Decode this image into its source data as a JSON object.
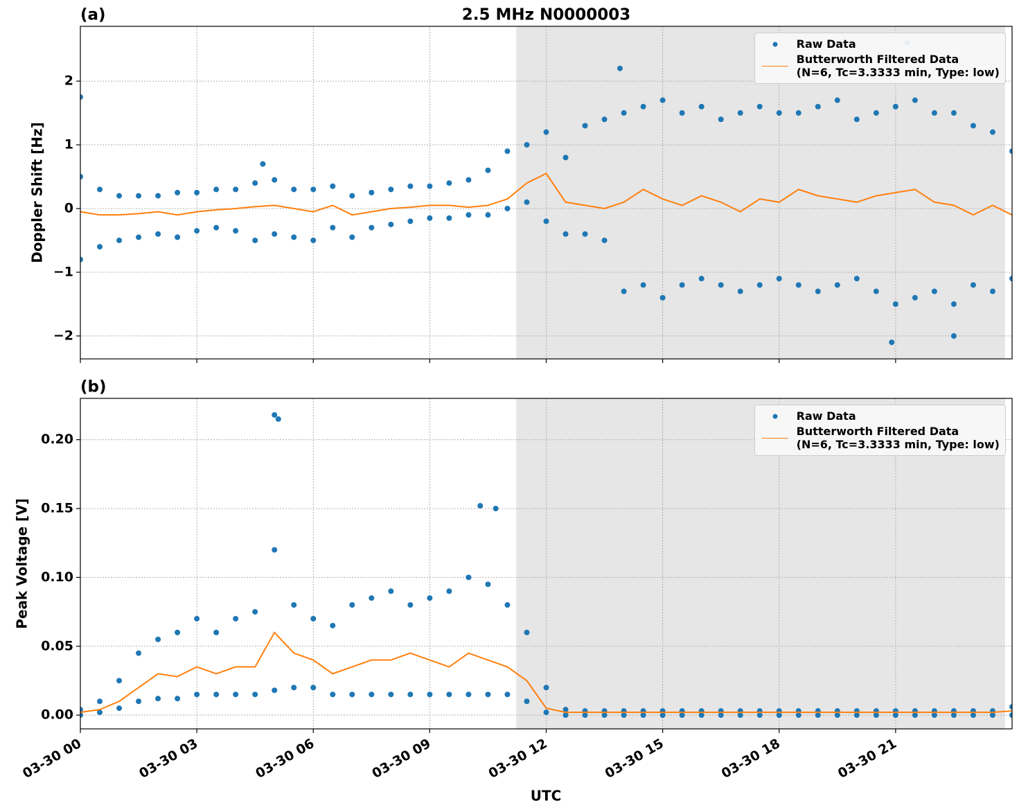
{
  "chart_data": [
    {
      "type": "scatter",
      "panel_label": "(a)",
      "title": "2.5 MHz N0000003",
      "ylabel": "Doppler Shift [Hz]",
      "xlim": [
        0,
        24
      ],
      "xticks": [
        0,
        3,
        6,
        9,
        12,
        15,
        18,
        21
      ],
      "ylim": [
        -2.36,
        2.86
      ],
      "yticks": [
        {
          "value": -2,
          "label": "−2"
        },
        {
          "value": -1,
          "label": "−1"
        },
        0,
        1,
        2
      ],
      "grid": true,
      "legend": "upper right",
      "shaded_span": [
        11.23,
        23.82
      ],
      "shade_color": "#e6e6e6",
      "series": [
        {
          "name": "Raw Data",
          "color": "#1f77b4",
          "mode": "markers",
          "x": [
            0,
            0.5,
            1,
            1.5,
            2,
            2.5,
            3,
            3.5,
            4,
            4.5,
            5,
            5.5,
            6,
            6.5,
            7,
            7.5,
            8,
            8.5,
            9,
            9.5,
            10,
            10.5,
            11,
            11.5,
            12,
            12.5,
            13,
            13.5,
            14,
            14.5,
            15,
            15.5,
            16,
            16.5,
            17,
            17.5,
            18,
            18.5,
            19,
            19.5,
            20,
            20.5,
            21,
            21.5,
            22,
            22.5,
            23,
            23.5,
            24,
            0,
            0.5,
            1,
            1.5,
            2,
            2.5,
            3,
            3.5,
            4,
            4.5,
            5,
            5.5,
            6,
            6.5,
            7,
            7.5,
            8,
            8.5,
            9,
            9.5,
            10,
            10.5,
            11,
            11.5,
            12,
            12.5,
            13,
            13.5,
            14,
            14.5,
            15,
            15.5,
            16,
            16.5,
            17,
            17.5,
            18,
            18.5,
            19,
            19.5,
            20,
            20.5,
            21,
            21.5,
            22,
            22.5,
            23,
            23.5,
            24,
            0,
            4.7,
            13.9,
            21.3,
            22.5,
            20.9
          ],
          "values": [
            0.5,
            0.3,
            0.2,
            0.2,
            0.2,
            0.25,
            0.25,
            0.3,
            0.3,
            0.4,
            0.45,
            0.3,
            0.3,
            0.35,
            0.2,
            0.25,
            0.3,
            0.35,
            0.35,
            0.4,
            0.45,
            0.6,
            0.9,
            1.0,
            1.2,
            0.8,
            1.3,
            1.4,
            1.5,
            1.6,
            1.7,
            1.5,
            1.6,
            1.4,
            1.5,
            1.6,
            1.5,
            1.5,
            1.6,
            1.7,
            1.4,
            1.5,
            1.6,
            1.7,
            1.5,
            1.5,
            1.3,
            1.2,
            0.9,
            -0.8,
            -0.6,
            -0.5,
            -0.45,
            -0.4,
            -0.45,
            -0.35,
            -0.3,
            -0.35,
            -0.5,
            -0.4,
            -0.45,
            -0.5,
            -0.3,
            -0.45,
            -0.3,
            -0.25,
            -0.2,
            -0.15,
            -0.15,
            -0.1,
            -0.1,
            0.0,
            0.1,
            -0.2,
            -0.4,
            -0.4,
            -0.5,
            -1.3,
            -1.2,
            -1.4,
            -1.2,
            -1.1,
            -1.2,
            -1.3,
            -1.2,
            -1.1,
            -1.2,
            -1.3,
            -1.2,
            -1.1,
            -1.3,
            -1.5,
            -1.4,
            -1.3,
            -1.5,
            -1.2,
            -1.3,
            -1.1,
            1.75,
            0.7,
            2.2,
            2.6,
            -2.0,
            -2.1
          ]
        },
        {
          "name": "Butterworth Filtered Data\n(N=6, Tc=3.3333 min, Type: low)",
          "color": "#ff7f0e",
          "mode": "line",
          "x": [
            0,
            0.5,
            1,
            1.5,
            2,
            2.5,
            3,
            3.5,
            4,
            4.5,
            5,
            5.5,
            6,
            6.5,
            7,
            7.5,
            8,
            8.5,
            9,
            9.5,
            10,
            10.5,
            11,
            11.5,
            12,
            12.5,
            13,
            13.5,
            14,
            14.5,
            15,
            15.5,
            16,
            16.5,
            17,
            17.5,
            18,
            18.5,
            19,
            19.5,
            20,
            20.5,
            21,
            21.5,
            22,
            22.5,
            23,
            23.5,
            24
          ],
          "values": [
            -0.05,
            -0.1,
            -0.1,
            -0.08,
            -0.05,
            -0.1,
            -0.05,
            -0.02,
            0.0,
            0.03,
            0.05,
            0.0,
            -0.05,
            0.05,
            -0.1,
            -0.05,
            0.0,
            0.02,
            0.05,
            0.05,
            0.02,
            0.05,
            0.15,
            0.4,
            0.55,
            0.1,
            0.05,
            0.0,
            0.1,
            0.3,
            0.15,
            0.05,
            0.2,
            0.1,
            -0.05,
            0.15,
            0.1,
            0.3,
            0.2,
            0.15,
            0.1,
            0.2,
            0.25,
            0.3,
            0.1,
            0.05,
            -0.1,
            0.05,
            -0.1
          ]
        }
      ]
    },
    {
      "type": "scatter",
      "panel_label": "(b)",
      "ylabel": "Peak Voltage [V]",
      "xlabel": "UTC",
      "xlim": [
        0,
        24
      ],
      "xticks": [
        {
          "value": 0,
          "label": "03-30 00"
        },
        {
          "value": 3,
          "label": "03-30 03"
        },
        {
          "value": 6,
          "label": "03-30 06"
        },
        {
          "value": 9,
          "label": "03-30 09"
        },
        {
          "value": 12,
          "label": "03-30 12"
        },
        {
          "value": 15,
          "label": "03-30 15"
        },
        {
          "value": 18,
          "label": "03-30 18"
        },
        {
          "value": 21,
          "label": "03-30 21"
        }
      ],
      "ylim": [
        -0.01,
        0.23
      ],
      "yticks": [
        {
          "value": 0,
          "label": "0.00"
        },
        {
          "value": 0.05,
          "label": "0.05"
        },
        {
          "value": 0.1,
          "label": "0.10"
        },
        {
          "value": 0.15,
          "label": "0.15"
        },
        {
          "value": 0.2,
          "label": "0.20"
        }
      ],
      "grid": true,
      "legend": "upper right",
      "shaded_span": [
        11.23,
        23.82
      ],
      "shade_color": "#e6e6e6",
      "series": [
        {
          "name": "Raw Data",
          "color": "#1f77b4",
          "mode": "markers",
          "x": [
            0,
            0.5,
            1,
            1.5,
            2,
            2.5,
            3,
            3.5,
            4,
            4.5,
            5,
            5.5,
            6,
            6.5,
            7,
            7.5,
            8,
            8.5,
            9,
            9.5,
            10,
            10.5,
            11,
            11.5,
            12,
            12.5,
            13,
            13.5,
            14,
            14.5,
            15,
            15.5,
            16,
            16.5,
            17,
            17.5,
            18,
            18.5,
            19,
            19.5,
            20,
            20.5,
            21,
            21.5,
            22,
            22.5,
            23,
            23.5,
            24,
            0,
            0.5,
            1,
            1.5,
            2,
            2.5,
            3,
            3.5,
            4,
            4.5,
            5,
            5.5,
            6,
            6.5,
            7,
            7.5,
            8,
            8.5,
            9,
            9.5,
            10,
            10.5,
            11,
            11.5,
            12,
            12.5,
            13,
            13.5,
            14,
            14.5,
            15,
            15.5,
            16,
            16.5,
            17,
            17.5,
            18,
            18.5,
            19,
            19.5,
            20,
            20.5,
            21,
            21.5,
            22,
            22.5,
            23,
            23.5,
            24,
            5.0,
            5.1,
            10.3,
            10.7
          ],
          "values": [
            0.004,
            0.01,
            0.025,
            0.045,
            0.055,
            0.06,
            0.07,
            0.06,
            0.07,
            0.075,
            0.12,
            0.08,
            0.07,
            0.065,
            0.08,
            0.085,
            0.09,
            0.08,
            0.085,
            0.09,
            0.1,
            0.095,
            0.08,
            0.06,
            0.02,
            0.004,
            0.003,
            0.003,
            0.003,
            0.003,
            0.003,
            0.003,
            0.003,
            0.003,
            0.003,
            0.003,
            0.003,
            0.003,
            0.003,
            0.003,
            0.003,
            0.003,
            0.003,
            0.003,
            0.003,
            0.003,
            0.003,
            0.003,
            0.006,
            0,
            0.002,
            0.005,
            0.01,
            0.012,
            0.012,
            0.015,
            0.015,
            0.015,
            0.015,
            0.018,
            0.02,
            0.02,
            0.015,
            0.015,
            0.015,
            0.015,
            0.015,
            0.015,
            0.015,
            0.015,
            0.015,
            0.015,
            0.01,
            0.002,
            0,
            0,
            0,
            0,
            0,
            0,
            0,
            0,
            0,
            0,
            0,
            0,
            0,
            0,
            0,
            0,
            0,
            0,
            0,
            0,
            0,
            0,
            0,
            0,
            0.218,
            0.215,
            0.152,
            0.15
          ]
        },
        {
          "name": "Butterworth Filtered Data\n(N=6, Tc=3.3333 min, Type: low)",
          "color": "#ff7f0e",
          "mode": "line",
          "x": [
            0,
            0.5,
            1,
            1.5,
            2,
            2.5,
            3,
            3.5,
            4,
            4.5,
            5,
            5.5,
            6,
            6.5,
            7,
            7.5,
            8,
            8.5,
            9,
            9.5,
            10,
            10.5,
            11,
            11.5,
            12,
            12.5,
            13,
            13.5,
            14,
            14.5,
            15,
            15.5,
            16,
            16.5,
            17,
            17.5,
            18,
            18.5,
            19,
            19.5,
            20,
            20.5,
            21,
            21.5,
            22,
            22.5,
            23,
            23.5,
            24
          ],
          "values": [
            0.002,
            0.004,
            0.01,
            0.02,
            0.03,
            0.028,
            0.035,
            0.03,
            0.035,
            0.035,
            0.06,
            0.045,
            0.04,
            0.03,
            0.035,
            0.04,
            0.04,
            0.045,
            0.04,
            0.035,
            0.045,
            0.04,
            0.035,
            0.025,
            0.005,
            0.002,
            0.002,
            0.002,
            0.002,
            0.002,
            0.002,
            0.002,
            0.002,
            0.002,
            0.002,
            0.002,
            0.002,
            0.002,
            0.002,
            0.002,
            0.002,
            0.002,
            0.002,
            0.002,
            0.002,
            0.002,
            0.002,
            0.002,
            0.003
          ]
        }
      ]
    }
  ]
}
